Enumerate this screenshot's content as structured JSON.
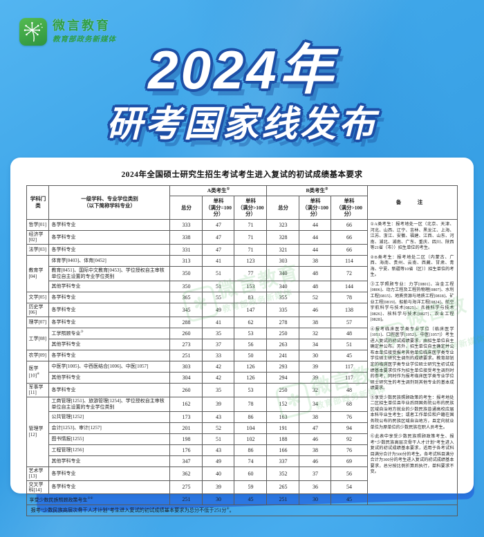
{
  "brand": {
    "name": "微言教育",
    "subtitle": "教育部政务新媒体"
  },
  "title": {
    "line1": "2024年",
    "line2": "研考国家线发布"
  },
  "colors": {
    "background_blue": "#3ea6e9",
    "ribbon_blue": "#2b76e1",
    "card_white": "#ffffff",
    "brand_green": "#2f9e44",
    "title_outline_blue": "#1d4fa6",
    "table_text": "#1c1c1c"
  },
  "table": {
    "caption": "2024年全国硕士研究生招生考试考生进入复试的初试成绩基本要求",
    "headers": {
      "category": "学科门类",
      "discipline_l1": "一级学科、专业学位类别",
      "discipline_l2": "（以下简称学科专业）",
      "group_a": "A类考生",
      "group_a_sup": "①",
      "group_b": "B类考生",
      "group_b_sup": "②",
      "total": "总分",
      "single": "单科",
      "single_eq": "（满分=100分）",
      "single_gt": "（满分>100分）",
      "remarks": "备　注"
    },
    "blocks": [
      {
        "category": "哲学[01]",
        "items": [
          {
            "d": "各学科专业",
            "a": [
              333,
              47,
              71
            ],
            "b": [
              323,
              44,
              66
            ]
          }
        ]
      },
      {
        "category": "经济学[02]",
        "items": [
          {
            "d": "各学科专业",
            "a": [
              338,
              47,
              71
            ],
            "b": [
              328,
              44,
              66
            ]
          }
        ]
      },
      {
        "category": "法学[03]",
        "items": [
          {
            "d": "各学科专业",
            "a": [
              331,
              47,
              71
            ],
            "b": [
              321,
              44,
              66
            ]
          }
        ]
      },
      {
        "category": "教育学[04]",
        "items": [
          {
            "d": "体育学[0403]、体育[0452]",
            "a": [
              313,
              41,
              123
            ],
            "b": [
              303,
              38,
              114
            ]
          },
          {
            "d": "教育[0451]、国际中文教育[0453]、学位授权自主审核单位自主设置的专业学位类别",
            "a": [
              350,
              51,
              77
            ],
            "b": [
              340,
              48,
              72
            ]
          },
          {
            "d": "其他学科专业",
            "a": [
              350,
              51,
              153
            ],
            "b": [
              340,
              48,
              144
            ]
          }
        ]
      },
      {
        "category": "文学[05]",
        "items": [
          {
            "d": "各学科专业",
            "a": [
              365,
              55,
              83
            ],
            "b": [
              355,
              52,
              78
            ]
          }
        ]
      },
      {
        "category": "历史学[06]",
        "items": [
          {
            "d": "各学科专业",
            "a": [
              345,
              49,
              147
            ],
            "b": [
              335,
              46,
              138
            ]
          }
        ]
      },
      {
        "category": "理学[07]",
        "items": [
          {
            "d": "各学科专业",
            "a": [
              288,
              41,
              62
            ],
            "b": [
              278,
              38,
              57
            ]
          }
        ]
      },
      {
        "category": "工学[08]",
        "items": [
          {
            "d": "工学照顾专业",
            "sup": "③",
            "a": [
              260,
              35,
              53
            ],
            "b": [
              250,
              32,
              48
            ]
          },
          {
            "d": "其他学科专业",
            "a": [
              273,
              37,
              56
            ],
            "b": [
              263,
              34,
              51
            ]
          }
        ]
      },
      {
        "category": "农学[09]",
        "items": [
          {
            "d": "各学科专业",
            "a": [
              251,
              33,
              50
            ],
            "b": [
              241,
              30,
              45
            ]
          }
        ]
      },
      {
        "category": "医学[10]",
        "sup": "④",
        "items": [
          {
            "d": "中医学[1005]、中西医结合[1006]、中医[1057]",
            "a": [
              303,
              42,
              126
            ],
            "b": [
              293,
              39,
              117
            ]
          },
          {
            "d": "其他学科专业",
            "a": [
              304,
              42,
              126
            ],
            "b": [
              294,
              39,
              117
            ]
          }
        ]
      },
      {
        "category": "军事学[11]",
        "items": [
          {
            "d": "各学科专业",
            "a": [
              260,
              35,
              53
            ],
            "b": [
              250,
              32,
              48
            ]
          }
        ]
      },
      {
        "category": "管理学[12]",
        "items": [
          {
            "d": "工商管理[1251]、旅游管理[1254]、学位授权自主审核单位自主设置的专业学位类别",
            "a": [
              162,
              39,
              78
            ],
            "b": [
              152,
              34,
              68
            ]
          },
          {
            "d": "公共管理[1252]",
            "a": [
              173,
              43,
              86
            ],
            "b": [
              163,
              38,
              76
            ]
          },
          {
            "d": "会计[1253]、审计[1257]",
            "a": [
              201,
              52,
              104
            ],
            "b": [
              191,
              47,
              94
            ]
          },
          {
            "d": "图书情报[1255]",
            "a": [
              198,
              51,
              102
            ],
            "b": [
              188,
              46,
              92
            ]
          },
          {
            "d": "工程管理[1256]",
            "a": [
              176,
              43,
              86
            ],
            "b": [
              166,
              38,
              76
            ]
          },
          {
            "d": "其他学科专业",
            "a": [
              347,
              49,
              74
            ],
            "b": [
              337,
              46,
              69
            ]
          }
        ]
      },
      {
        "category": "艺术学[13]",
        "items": [
          {
            "d": "各学科专业",
            "a": [
              362,
              40,
              60
            ],
            "b": [
              352,
              37,
              56
            ]
          }
        ]
      },
      {
        "category": "交叉学科[14]",
        "items": [
          {
            "d": "各学科专业",
            "a": [
              275,
              39,
              59
            ],
            "b": [
              265,
              36,
              54
            ]
          }
        ]
      }
    ],
    "special_row": {
      "label": "享受少数民族照顾政策考生",
      "sup": "⑤⑥",
      "a": [
        251,
        30,
        45
      ],
      "b": [
        251,
        30,
        45
      ]
    },
    "footer": {
      "text": "报考“少数民族高层次骨干人才计划”考生进入复试的初试成绩基本要求为总分不低于251分",
      "sup": "⑥",
      "tail": "。"
    },
    "remarks_paragraphs": [
      "①A类考生：报考地处一区（北京、天津、河北、山西、辽宁、吉林、黑龙江、上海、江苏、浙江、安徽、福建、江西、山东、河南、湖北、湖南、广东、重庆、四川、陕西等21省（市））招生单位的考生。",
      "②B类考生：报考地处二区（内蒙古、广西、海南、贵州、云南、西藏、甘肃、青海、宁夏、新疆等10省（区））招生单位的考生。",
      "③工学照顾专业：力学[0801]、冶金工程[0806]、动力工程及工程热物理[0807]、水利工程[0815]、地质资源与地质工程[0818]、矿业工程[0819]、船舶与海洋工程[0824]、航空宇航科学与技术[0825]、兵器科学与技术[0826]、核科学与技术[0827]、农业工程[0828]。",
      "④报考临床医学类专业学位（临床医学[1051]、口腔医学[1052]、中医[1057]）考生进入复试的初试成绩要求，由招生单位自主确定并公布。另外，招生单位自主确定并公布本单位接受报考其他单位临床医学类专业学位硕士研究生调剂的成绩要求。教育部划定的临床医学类专业学位硕士研究生初试成绩基本要求仅作为招生单位接受考生调剂时的参考，同时作为报考临床医学类专业学位硕士研究生的考生调剂到其他专业的基本成绩要求。",
      "⑤享受少数民族照顾政策的考生：报考地处二区招生单位且毕业后回国务院公布的民族区域自治地方就业的少数民族普通高校应届本科毕业生考生；或者工作单位和户籍在国务院公布的民族区域自治地方，且定向就业单位为原单位的少数民族在职人员考生。",
      "⑥此表中享受少数民族照顾政策考生、报考“少数民族高层次骨干人才计划”考生进入复试的初试成绩基本要求，适用于各考试科目满分合计为500分的考生。各考试科目满分合计为300分的考生进入复试的初试成绩基本要求，总分按比例折算后执行，单科要求不变。"
    ]
  },
  "watermark": {
    "name": "微言教育",
    "subtitle": "教育部政务新媒体"
  }
}
